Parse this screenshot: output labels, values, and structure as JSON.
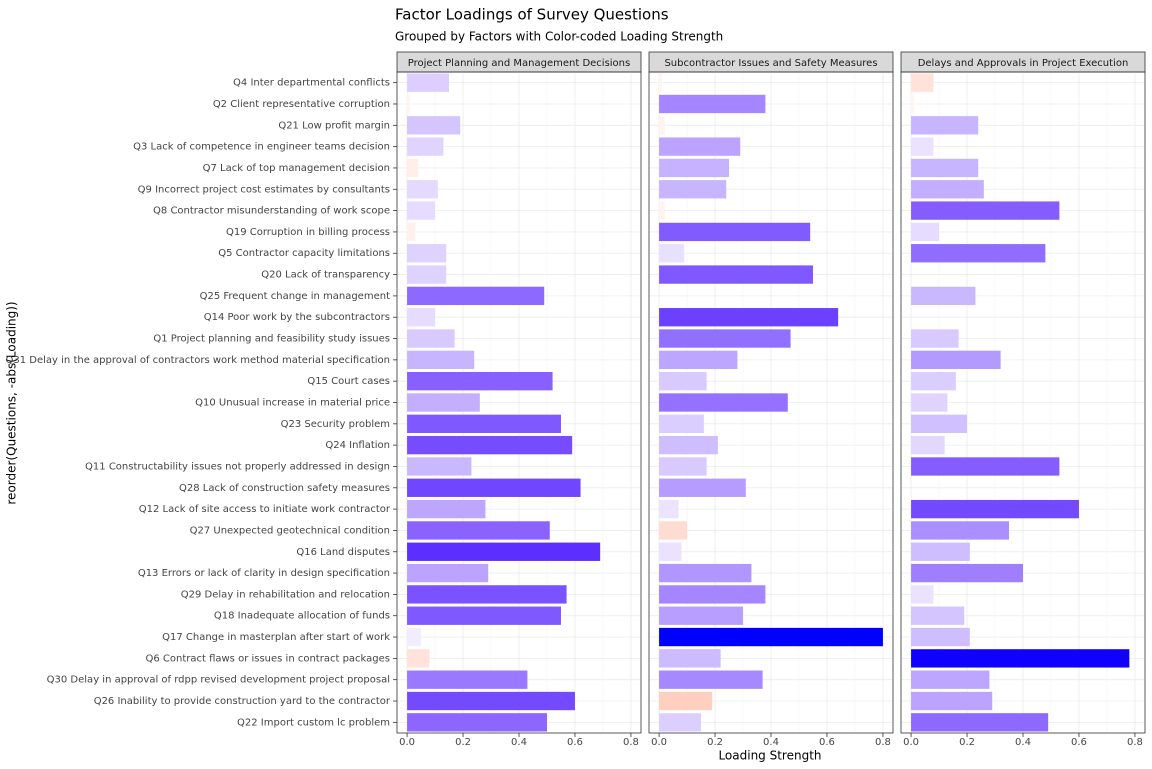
{
  "chart_data": {
    "type": "bar",
    "title": "Factor Loadings of Survey Questions",
    "subtitle": "Grouped by Factors with Color-coded Loading Strength",
    "x_label": "Loading Strength",
    "y_label": "reorder(Questions, -abs(Loading))",
    "categories": [
      "Q4 Inter departmental conflicts",
      "Q2 Client representative corruption",
      "Q21 Low profit margin",
      "Q3 Lack of competence in engineer teams decision",
      "Q7 Lack of top management decision",
      "Q9 Incorrect project cost estimates by consultants",
      "Q8 Contractor misunderstanding of work scope",
      "Q19 Corruption in billing process",
      "Q5 Contractor capacity limitations",
      "Q20 Lack of transparency",
      "Q25 Frequent change in management",
      "Q14 Poor work by the subcontractors",
      "Q1 Project planning and feasibility study issues",
      "Q31 Delay in the approval of contractors work method material specification",
      "Q15 Court cases",
      "Q10 Unusual increase in material price",
      "Q23 Security problem",
      "Q24 Inflation",
      "Q11 Constructability issues not properly addressed in design",
      "Q28 Lack of construction safety measures",
      "Q12 Lack of site access to initiate work contractor",
      "Q27 Unexpected geotechnical condition",
      "Q16 Land disputes",
      "Q13 Errors or lack of clarity in design specification",
      "Q29 Delay in rehabilitation and relocation",
      "Q18 Inadequate allocation of funds",
      "Q17 Change in masterplan after start of work",
      "Q6 Contract flaws or issues in contract packages",
      "Q30 Delay in approval of rdpp revised development project proposal",
      "Q26 Inability to provide construction yard to the contractor",
      "Q22 Import custom lc problem"
    ],
    "xlim": [
      -0.036,
      0.836
    ],
    "xticks": [
      {
        "value": 0,
        "label": "0.0"
      },
      0.2,
      0.4,
      0.6,
      0.8
    ],
    "grid": true,
    "series": [
      {
        "name": "Project Planning and Management Decisions",
        "values": [
          0.15,
          0.01,
          0.19,
          0.13,
          0.04,
          0.11,
          0.1,
          0.03,
          0.14,
          0.14,
          0.49,
          0.1,
          0.17,
          0.24,
          0.52,
          0.26,
          0.55,
          0.59,
          0.23,
          0.62,
          0.28,
          0.51,
          0.69,
          0.29,
          0.57,
          0.55,
          0.05,
          0.08,
          0.43,
          0.6,
          0.5
        ],
        "colors": [
          "#dccfff",
          "#fff5f3",
          "#d4c5ff",
          "#e0d4ff",
          "#ffeeea",
          "#e4daff",
          "#e6dcff",
          "#fff0ec",
          "#ded2ff",
          "#ded2ff",
          "#8e69ff",
          "#e6dcff",
          "#d8caff",
          "#c8b5ff",
          "#8860ff",
          "#c3aeff",
          "#8058ff",
          "#764cff",
          "#cab8ff",
          "#7046ff",
          "#bda6ff",
          "#8a63ff",
          "#5c2eff",
          "#bba3ff",
          "#7b52ff",
          "#8058ff",
          "#f2ecff",
          "#ffe2da",
          "#9a78ff",
          "#744aff",
          "#8c66ff"
        ]
      },
      {
        "name": "Subcontractor Issues and Safety Measures",
        "values": [
          0.01,
          0.38,
          0.02,
          0.29,
          0.25,
          0.24,
          0.02,
          0.54,
          0.09,
          0.55,
          0.0,
          0.64,
          0.47,
          0.28,
          0.17,
          0.46,
          0.16,
          0.21,
          0.17,
          0.31,
          0.07,
          0.1,
          0.08,
          0.33,
          0.38,
          0.3,
          0.8,
          0.22,
          0.37,
          0.19,
          0.15
        ],
        "colors": [
          "#fff5f3",
          "#a586ff",
          "#fff2ef",
          "#bba3ff",
          "#c6b2ff",
          "#c8b5ff",
          "#fff2ef",
          "#825bff",
          "#e8e0ff",
          "#8058ff",
          "#ffffff",
          "#6c40ff",
          "#9270ff",
          "#bda6ff",
          "#d8caff",
          "#9472ff",
          "#dacdff",
          "#cebeff",
          "#d8caff",
          "#b69cff",
          "#ece4ff",
          "#ffdcd2",
          "#eae2ff",
          "#b196ff",
          "#a586ff",
          "#b89fff",
          "#0000ff",
          "#ccbbff",
          "#a789ff",
          "#ffcfbf",
          "#dccfff"
        ]
      },
      {
        "name": "Delays and Approvals in Project Execution",
        "values": [
          0.08,
          0.01,
          0.24,
          0.08,
          0.24,
          0.26,
          0.53,
          0.1,
          0.48,
          0.0,
          0.23,
          0.0,
          0.17,
          0.32,
          0.16,
          0.13,
          0.2,
          0.12,
          0.53,
          0.0,
          0.6,
          0.35,
          0.21,
          0.4,
          0.08,
          0.19,
          0.21,
          0.78,
          0.28,
          0.29,
          0.49
        ],
        "colors": [
          "#ffe2da",
          "#fff5f3",
          "#c8b5ff",
          "#eae2ff",
          "#c8b5ff",
          "#c3aeff",
          "#855dff",
          "#e6dcff",
          "#906cff",
          "#ffffff",
          "#cab8ff",
          "#ffffff",
          "#d8caff",
          "#b39aff",
          "#dacdff",
          "#e0d4ff",
          "#d0c0ff",
          "#e2d7ff",
          "#855dff",
          "#ffffff",
          "#744aff",
          "#ab8eff",
          "#cebeff",
          "#a07fff",
          "#eae2ff",
          "#d4c5ff",
          "#cebeff",
          "#1000ff",
          "#bda6ff",
          "#bba3ff",
          "#8e69ff"
        ]
      }
    ]
  }
}
